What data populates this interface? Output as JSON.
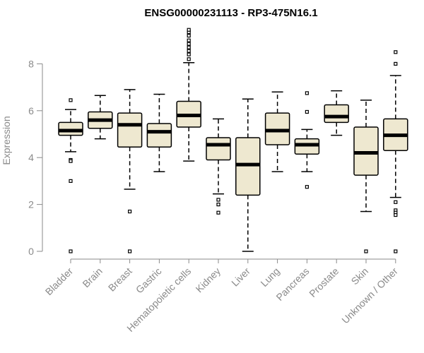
{
  "chart_data": {
    "type": "box",
    "title": "ENSG00000231113 - RP3-475N16.1",
    "ylabel": "Expression",
    "xlabel": "",
    "ylim": [
      0,
      9.8
    ],
    "yticks": [
      0,
      2,
      4,
      6,
      8
    ],
    "grid": false,
    "colors": {
      "box_fill": "#eee8d0",
      "stroke": "#000000",
      "axis": "#8a8a8a"
    },
    "categories": [
      "Bladder",
      "Brain",
      "Breast",
      "Gastric",
      "Hematopoietic cells",
      "Kidney",
      "Liver",
      "Lung",
      "Pancreas",
      "Prostate",
      "Skin",
      "Unknown / Other"
    ],
    "boxes": [
      {
        "whisker_low": 4.25,
        "q1": 4.95,
        "median": 5.15,
        "q3": 5.5,
        "whisker_high": 6.05,
        "outliers": [
          6.45,
          3.9,
          3.85,
          3.0,
          0.0
        ]
      },
      {
        "whisker_low": 4.8,
        "q1": 5.25,
        "median": 5.6,
        "q3": 5.95,
        "whisker_high": 6.65,
        "outliers": []
      },
      {
        "whisker_low": 2.65,
        "q1": 4.45,
        "median": 5.4,
        "q3": 5.9,
        "whisker_high": 6.9,
        "outliers": [
          1.7,
          0.0
        ]
      },
      {
        "whisker_low": 3.4,
        "q1": 4.45,
        "median": 5.1,
        "q3": 5.45,
        "whisker_high": 6.7,
        "outliers": []
      },
      {
        "whisker_low": 3.85,
        "q1": 5.3,
        "median": 5.8,
        "q3": 6.4,
        "whisker_high": 8.05,
        "outliers": [
          8.2,
          8.4,
          8.55,
          8.7,
          8.85,
          9.0,
          9.2,
          9.35,
          9.45
        ]
      },
      {
        "whisker_low": 2.45,
        "q1": 3.9,
        "median": 4.55,
        "q3": 4.85,
        "whisker_high": 5.65,
        "outliers": [
          2.2,
          2.0,
          1.65
        ]
      },
      {
        "whisker_low": 0.0,
        "q1": 2.4,
        "median": 3.7,
        "q3": 4.85,
        "whisker_high": 6.5,
        "outliers": []
      },
      {
        "whisker_low": 3.4,
        "q1": 4.55,
        "median": 5.15,
        "q3": 5.9,
        "whisker_high": 6.8,
        "outliers": []
      },
      {
        "whisker_low": 3.4,
        "q1": 4.15,
        "median": 4.55,
        "q3": 4.8,
        "whisker_high": 5.2,
        "outliers": [
          6.75,
          5.95,
          2.75
        ]
      },
      {
        "whisker_low": 4.95,
        "q1": 5.5,
        "median": 5.75,
        "q3": 6.25,
        "whisker_high": 6.85,
        "outliers": []
      },
      {
        "whisker_low": 1.7,
        "q1": 3.25,
        "median": 4.2,
        "q3": 5.3,
        "whisker_high": 6.45,
        "outliers": [
          0.0
        ]
      },
      {
        "whisker_low": 2.3,
        "q1": 4.3,
        "median": 4.95,
        "q3": 5.65,
        "whisker_high": 7.5,
        "outliers": [
          8.5,
          8.0,
          2.1,
          1.75,
          1.65,
          1.55,
          0.0
        ]
      }
    ]
  }
}
